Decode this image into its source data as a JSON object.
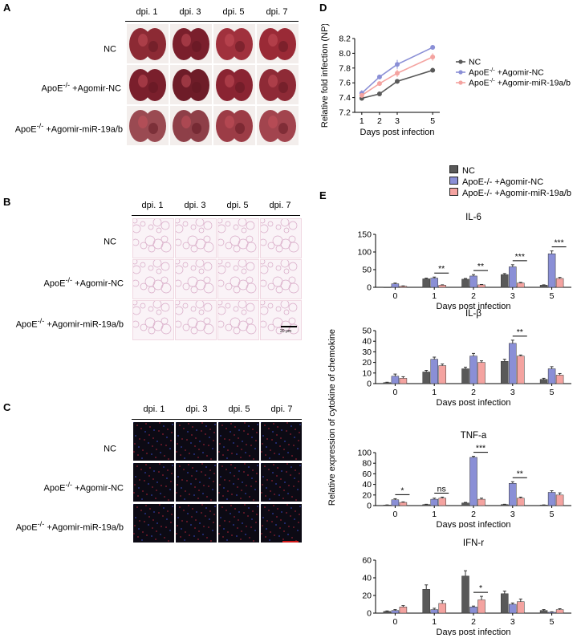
{
  "panelA": {
    "letter": "A",
    "columns": [
      "dpi. 1",
      "dpi. 3",
      "dpi. 5",
      "dpi. 7"
    ],
    "rows": [
      {
        "base": "NC",
        "sup": "",
        "rest": ""
      },
      {
        "base": "ApoE",
        "sup": "-/-",
        "rest": " +Agomir-NC"
      },
      {
        "base": "ApoE",
        "sup": "-/-",
        "rest": " +Agomir-miR-19a/b"
      }
    ]
  },
  "panelB": {
    "letter": "B",
    "columns": [
      "dpi. 1",
      "dpi. 3",
      "dpi. 5",
      "dpi. 7"
    ],
    "rows": [
      {
        "base": "NC",
        "sup": "",
        "rest": ""
      },
      {
        "base": "ApoE",
        "sup": "-/-",
        "rest": " +Agomir-NC"
      },
      {
        "base": "ApoE",
        "sup": "-/-",
        "rest": " +Agomir-miR-19a/b"
      }
    ],
    "scale_label": "20 μm"
  },
  "panelC": {
    "letter": "C",
    "columns": [
      "dpi. 1",
      "dpi. 3",
      "dpi. 5",
      "dpi. 7"
    ],
    "rows": [
      {
        "base": "NC",
        "sup": "",
        "rest": ""
      },
      {
        "base": "ApoE",
        "sup": "-/-",
        "rest": " +Agomir-NC"
      },
      {
        "base": "ApoE",
        "sup": "-/-",
        "rest": " +Agomir-miR-19a/b"
      }
    ]
  },
  "colors": {
    "NC": "#595959",
    "AgomirNC": "#8a8fd6",
    "Agomir19": "#f4a3a0"
  },
  "chart_data": [
    {
      "panel": "D",
      "type": "line",
      "x": [
        1,
        2,
        3,
        5
      ],
      "xlabel": "Days post infection",
      "ylabel": "Relative fold infection (NP)",
      "ylim": [
        7.2,
        8.2
      ],
      "yticks": [
        7.2,
        7.4,
        7.6,
        7.8,
        8.0,
        8.2
      ],
      "legend": "right",
      "series": [
        {
          "name": "NC",
          "values": [
            7.39,
            7.45,
            7.62,
            7.77
          ],
          "err": [
            0.02,
            0.03,
            0.03,
            0.03
          ]
        },
        {
          "name": "ApoE-/- +Agomir-NC",
          "values": [
            7.46,
            7.68,
            7.85,
            8.08
          ],
          "err": [
            0.04,
            0.03,
            0.06,
            0.03
          ]
        },
        {
          "name": "ApoE-/- +Agomir-miR-19a/b",
          "values": [
            7.43,
            7.59,
            7.73,
            7.95
          ],
          "err": [
            0.03,
            0.03,
            0.05,
            0.05
          ]
        }
      ]
    },
    {
      "panel": "E",
      "type": "bar",
      "title": "IL-6",
      "categories": [
        "0",
        "1",
        "2",
        "3",
        "5"
      ],
      "xlabel": "Days post infection",
      "ylim": [
        0,
        150
      ],
      "yticks": [
        0,
        50,
        100,
        150
      ],
      "series": [
        {
          "name": "NC",
          "values": [
            0,
            24,
            23,
            36,
            6
          ],
          "err": [
            0,
            2,
            2,
            3,
            1
          ]
        },
        {
          "name": "ApoE-/- +Agomir-NC",
          "values": [
            10,
            26,
            32,
            58,
            95
          ],
          "err": [
            2,
            3,
            4,
            6,
            8
          ]
        },
        {
          "name": "ApoE-/- +Agomir-miR-19a/b",
          "values": [
            3,
            6,
            7,
            12,
            25
          ],
          "err": [
            1,
            1,
            1,
            2,
            3
          ]
        }
      ],
      "annotations": [
        {
          "x": "1",
          "text": "**"
        },
        {
          "x": "2",
          "text": "**"
        },
        {
          "x": "3",
          "text": "***"
        },
        {
          "x": "5",
          "text": "***"
        }
      ]
    },
    {
      "panel": "E",
      "type": "bar",
      "title": "IL-β",
      "categories": [
        "0",
        "1",
        "2",
        "3",
        "5"
      ],
      "xlabel": "Days post infection",
      "ylim": [
        0,
        50
      ],
      "yticks": [
        0,
        10,
        20,
        30,
        40,
        50
      ],
      "series": [
        {
          "name": "NC",
          "values": [
            1,
            11,
            14,
            21,
            4
          ],
          "err": [
            0.3,
            1.5,
            1.5,
            2,
            1
          ]
        },
        {
          "name": "ApoE-/- +Agomir-NC",
          "values": [
            7,
            23,
            26,
            38,
            14
          ],
          "err": [
            2,
            2,
            2.5,
            3,
            2
          ]
        },
        {
          "name": "ApoE-/- +Agomir-miR-19a/b",
          "values": [
            5,
            17,
            20,
            26,
            8
          ],
          "err": [
            1.5,
            1.5,
            1.5,
            1,
            1.5
          ]
        }
      ],
      "annotations": [
        {
          "x": "3",
          "text": "**"
        }
      ]
    },
    {
      "panel": "E",
      "type": "bar",
      "title": "TNF-a",
      "categories": [
        "0",
        "1",
        "2",
        "3",
        "5"
      ],
      "xlabel": "Days post infection",
      "ylim": [
        0,
        100
      ],
      "yticks": [
        0,
        20,
        40,
        60,
        80,
        100
      ],
      "series": [
        {
          "name": "NC",
          "values": [
            1,
            2,
            5,
            2,
            1
          ],
          "err": [
            0.3,
            0.5,
            1,
            0.5,
            0.3
          ]
        },
        {
          "name": "ApoE-/- +Agomir-NC",
          "values": [
            11,
            12,
            91,
            42,
            25
          ],
          "err": [
            2,
            2,
            2,
            3,
            3
          ]
        },
        {
          "name": "ApoE-/- +Agomir-miR-19a/b",
          "values": [
            6,
            14,
            12,
            14,
            20
          ],
          "err": [
            1,
            2,
            2,
            2,
            4
          ]
        }
      ],
      "annotations": [
        {
          "x": "0",
          "text": "*"
        },
        {
          "x": "1",
          "text": "ns"
        },
        {
          "x": "2",
          "text": "***"
        },
        {
          "x": "3",
          "text": "**"
        }
      ]
    },
    {
      "panel": "E",
      "type": "bar",
      "title": "IFN-r",
      "categories": [
        "0",
        "1",
        "2",
        "3",
        "5"
      ],
      "xlabel": "Days post infection",
      "ylim": [
        0,
        60
      ],
      "yticks": [
        0,
        20,
        40,
        60
      ],
      "series": [
        {
          "name": "NC",
          "values": [
            2,
            27,
            42,
            22,
            3
          ],
          "err": [
            0.5,
            5,
            6,
            3,
            1
          ]
        },
        {
          "name": "ApoE-/- +Agomir-NC",
          "values": [
            3,
            4,
            7,
            10,
            1
          ],
          "err": [
            1,
            1.5,
            1,
            1.5,
            0.5
          ]
        },
        {
          "name": "ApoE-/- +Agomir-miR-19a/b",
          "values": [
            7,
            11,
            15,
            13,
            4
          ],
          "err": [
            1.5,
            3,
            4,
            3,
            1
          ]
        }
      ],
      "annotations": [
        {
          "x": "2",
          "text": "*"
        }
      ]
    }
  ],
  "panelD": {
    "letter": "D"
  },
  "panelE": {
    "letter": "E",
    "ylabel": "Relative expression of cytokine of chemokine"
  }
}
